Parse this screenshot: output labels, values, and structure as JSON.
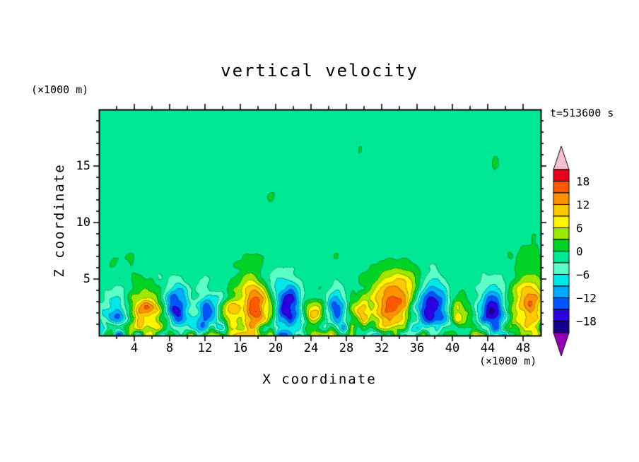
{
  "figure": {
    "title": "vertical velocity",
    "time_label": "t=513600 s",
    "y_units_label": "(×1000 m)",
    "x_units_label": "(×1000 m)",
    "x_axis_label": "X coordinate",
    "y_axis_label": "Z coordinate"
  },
  "chart_data": {
    "type": "heatmap",
    "title": "vertical velocity",
    "xlabel": "X coordinate (×1000 m)",
    "ylabel": "Z coordinate (×1000 m)",
    "time_annotation": "t=513600 s",
    "x_ticks": [
      "4",
      "8",
      "12",
      "16",
      "20",
      "24",
      "28",
      "32",
      "36",
      "40",
      "44",
      "48"
    ],
    "x_tick_values": [
      4,
      8,
      12,
      16,
      20,
      24,
      28,
      32,
      36,
      40,
      44,
      48
    ],
    "y_ticks": [
      "5",
      "10",
      "15"
    ],
    "y_tick_values": [
      5,
      10,
      15
    ],
    "x_range": [
      0,
      50
    ],
    "y_range": [
      0,
      20
    ],
    "grid": false,
    "legend_position": "right-colorbar",
    "colorbar": {
      "tick_labels": [
        "18",
        "12",
        "6",
        "0",
        "−6",
        "−12",
        "−18"
      ],
      "level_max": 21,
      "level_min": -21,
      "level_step": 3,
      "colors_top_to_bottom": [
        "#F5BFD4",
        "#E8001C",
        "#FF5A00",
        "#FF9100",
        "#FFC800",
        "#FFF500",
        "#9BE800",
        "#00D226",
        "#00E893",
        "#5CFFC8",
        "#00E8E8",
        "#00AAFF",
        "#0055FF",
        "#2A00E0",
        "#14008C",
        "#9400B4"
      ]
    },
    "field_description": "Vertical velocity cross-section: near-zero (spring green) aloft with weak patchy variations; vigorous convective updrafts (yellow/orange/red) and downdrafts (cyan/blue) confined below z≈5 km.",
    "features": [
      {
        "x": 2.0,
        "z": 2.2,
        "sx": 0.9,
        "sz": 1.2,
        "amp": -9
      },
      {
        "x": 5.4,
        "z": 2.2,
        "sx": 1.4,
        "sz": 1.3,
        "amp": 15
      },
      {
        "x": 8.8,
        "z": 2.4,
        "sx": 1.0,
        "sz": 1.4,
        "amp": -15
      },
      {
        "x": 12.3,
        "z": 2.2,
        "sx": 0.9,
        "sz": 1.2,
        "amp": -12
      },
      {
        "x": 14.8,
        "z": 2.0,
        "sx": 0.8,
        "sz": 1.0,
        "amp": 10
      },
      {
        "x": 17.6,
        "z": 2.6,
        "sx": 1.2,
        "sz": 1.8,
        "amp": 19
      },
      {
        "x": 21.5,
        "z": 2.6,
        "sx": 1.0,
        "sz": 1.5,
        "amp": -17
      },
      {
        "x": 24.3,
        "z": 2.0,
        "sx": 0.9,
        "sz": 1.0,
        "amp": 9
      },
      {
        "x": 26.8,
        "z": 2.4,
        "sx": 0.8,
        "sz": 1.1,
        "amp": -10
      },
      {
        "x": 29.6,
        "z": 2.0,
        "sx": 0.9,
        "sz": 1.0,
        "amp": 8
      },
      {
        "x": 33.2,
        "z": 2.6,
        "sx": 1.5,
        "sz": 1.7,
        "amp": 18
      },
      {
        "x": 37.6,
        "z": 2.6,
        "sx": 1.3,
        "sz": 1.6,
        "amp": -16
      },
      {
        "x": 40.8,
        "z": 2.0,
        "sx": 0.9,
        "sz": 1.0,
        "amp": 8
      },
      {
        "x": 44.6,
        "z": 2.4,
        "sx": 1.1,
        "sz": 1.5,
        "amp": -14
      },
      {
        "x": 48.7,
        "z": 2.6,
        "sx": 1.3,
        "sz": 1.7,
        "amp": 18
      },
      {
        "x": 35.0,
        "z": 4.8,
        "sx": 1.5,
        "sz": 0.9,
        "amp": 6
      },
      {
        "x": 19.5,
        "z": 5.0,
        "sx": 1.2,
        "sz": 0.8,
        "amp": -5
      }
    ]
  }
}
